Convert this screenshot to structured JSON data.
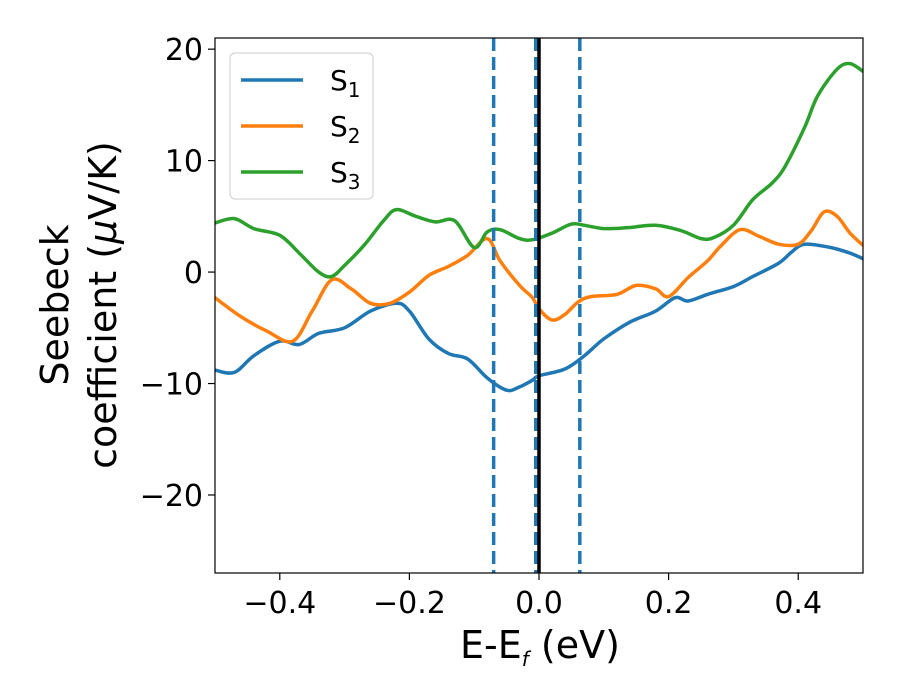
{
  "chart_data": {
    "type": "line",
    "title": "",
    "xlabel": {
      "main": "E-E",
      "sub": "f",
      "unit": " (eV)"
    },
    "ylabel": {
      "line1": "Seebeck",
      "line2_prefix": "coefficient  (",
      "mu": "μ",
      "line2_suffix": "V/K)"
    },
    "xlim": [
      -0.5,
      0.5
    ],
    "ylim": [
      -27,
      21
    ],
    "xticks": [
      -0.4,
      -0.2,
      0.0,
      0.2,
      0.4
    ],
    "xtick_labels": [
      "−0.4",
      "−0.2",
      "0.0",
      "0.2",
      "0.4"
    ],
    "yticks": [
      -20,
      -10,
      0,
      10,
      20
    ],
    "ytick_labels": [
      "−20",
      "−10",
      "0",
      "10",
      "20"
    ],
    "legend_position": "top-left",
    "vlines": [
      {
        "x": -0.07,
        "style": "dashed",
        "color": "#1f77b4"
      },
      {
        "x": -0.005,
        "style": "dashed",
        "color": "#1f77b4"
      },
      {
        "x": 0.063,
        "style": "dashed",
        "color": "#1f77b4"
      },
      {
        "x": 0.0,
        "style": "solid",
        "color": "#000000"
      }
    ],
    "series": [
      {
        "name": "S",
        "sub": "1",
        "color": "#1f77b4",
        "x": [
          -0.5,
          -0.47,
          -0.44,
          -0.4,
          -0.37,
          -0.34,
          -0.3,
          -0.26,
          -0.22,
          -0.2,
          -0.17,
          -0.14,
          -0.11,
          -0.08,
          -0.05,
          -0.03,
          -0.01,
          0.0,
          0.04,
          0.07,
          0.1,
          0.14,
          0.18,
          0.21,
          0.23,
          0.26,
          0.3,
          0.33,
          0.37,
          0.39,
          0.41,
          0.45,
          0.48,
          0.5
        ],
        "values": [
          -8.8,
          -9.0,
          -7.5,
          -6.2,
          -6.5,
          -5.5,
          -5.0,
          -3.5,
          -2.8,
          -3.5,
          -6.0,
          -7.3,
          -7.8,
          -9.5,
          -10.6,
          -10.3,
          -9.7,
          -9.3,
          -8.7,
          -7.5,
          -6.0,
          -4.5,
          -3.5,
          -2.3,
          -2.6,
          -2.0,
          -1.3,
          -0.4,
          0.8,
          1.8,
          2.5,
          2.2,
          1.7,
          1.2
        ]
      },
      {
        "name": "S",
        "sub": "2",
        "color": "#ff7f0e",
        "x": [
          -0.5,
          -0.46,
          -0.42,
          -0.38,
          -0.35,
          -0.32,
          -0.29,
          -0.26,
          -0.23,
          -0.2,
          -0.17,
          -0.14,
          -0.11,
          -0.08,
          -0.06,
          -0.03,
          -0.01,
          0.0,
          0.02,
          0.04,
          0.06,
          0.08,
          0.12,
          0.15,
          0.18,
          0.2,
          0.23,
          0.26,
          0.28,
          0.31,
          0.34,
          0.37,
          0.4,
          0.42,
          0.44,
          0.46,
          0.48,
          0.5
        ],
        "values": [
          -2.3,
          -4.0,
          -5.3,
          -6.2,
          -3.5,
          -0.7,
          -1.5,
          -2.8,
          -2.8,
          -1.8,
          -0.3,
          0.5,
          1.5,
          3.0,
          1.0,
          -1.2,
          -2.3,
          -3.3,
          -4.3,
          -3.8,
          -2.7,
          -2.2,
          -2.0,
          -1.2,
          -1.5,
          -2.2,
          -0.5,
          1.0,
          2.3,
          3.8,
          3.2,
          2.5,
          2.5,
          3.7,
          5.4,
          5.0,
          3.5,
          2.4
        ]
      },
      {
        "name": "S",
        "sub": "3",
        "color": "#2ca02c",
        "x": [
          -0.5,
          -0.47,
          -0.44,
          -0.4,
          -0.37,
          -0.34,
          -0.32,
          -0.3,
          -0.27,
          -0.24,
          -0.22,
          -0.19,
          -0.16,
          -0.13,
          -0.1,
          -0.08,
          -0.06,
          -0.03,
          -0.01,
          0.02,
          0.05,
          0.07,
          0.1,
          0.14,
          0.18,
          0.22,
          0.25,
          0.27,
          0.3,
          0.33,
          0.36,
          0.38,
          0.41,
          0.43,
          0.46,
          0.48,
          0.5
        ],
        "values": [
          4.4,
          4.8,
          3.9,
          3.3,
          1.7,
          0.0,
          -0.4,
          0.6,
          2.4,
          4.6,
          5.6,
          5.0,
          4.5,
          4.6,
          2.2,
          3.6,
          3.8,
          3.0,
          2.9,
          3.5,
          4.3,
          4.2,
          3.9,
          4.0,
          4.2,
          3.7,
          3.0,
          3.1,
          4.2,
          6.5,
          8.0,
          9.5,
          13.0,
          15.8,
          18.2,
          18.7,
          18.0
        ]
      }
    ]
  }
}
